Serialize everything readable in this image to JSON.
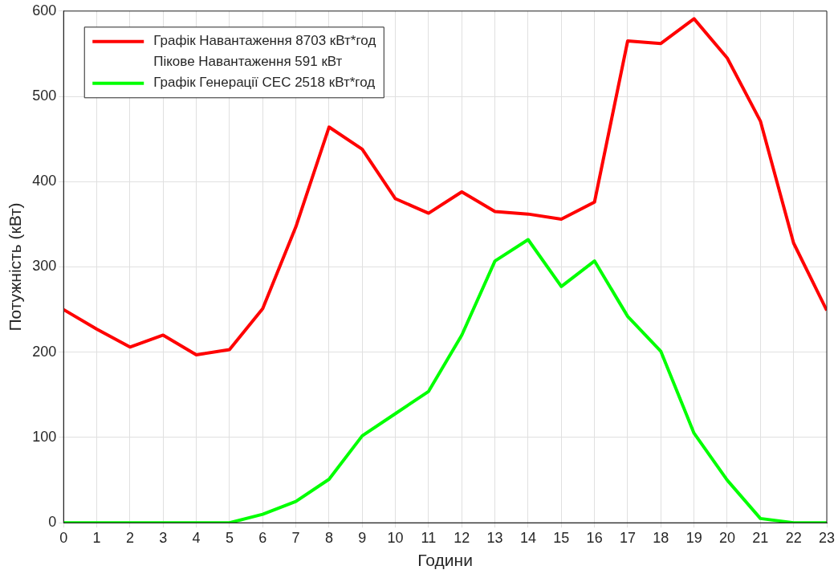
{
  "chart_data": {
    "type": "line",
    "xlabel": "Години",
    "ylabel": "Потужність (кВт)",
    "x": [
      0,
      1,
      2,
      3,
      4,
      5,
      6,
      7,
      8,
      9,
      10,
      11,
      12,
      13,
      14,
      15,
      16,
      17,
      18,
      19,
      20,
      21,
      22,
      23
    ],
    "series": [
      {
        "name": "Графік Навантаження 8703 кВт*год",
        "color": "#ff0000",
        "values": [
          250,
          227,
          206,
          220,
          197,
          203,
          251,
          347,
          464,
          438,
          380,
          363,
          388,
          365,
          362,
          356,
          376,
          565,
          562,
          591,
          545,
          471,
          328,
          249
        ]
      },
      {
        "name": "Графік Генерації СЕС 2518 кВт*год",
        "color": "#00ff00",
        "values": [
          0,
          0,
          0,
          0,
          0,
          0,
          10,
          25,
          51,
          102,
          128,
          154,
          220,
          307,
          332,
          277,
          307,
          242,
          201,
          105,
          50,
          5,
          0,
          0
        ]
      }
    ],
    "annotations": [
      "Пікове Навантаження 591 кВт"
    ],
    "xlim": [
      0,
      23
    ],
    "xticks": [
      0,
      1,
      2,
      3,
      4,
      5,
      6,
      7,
      8,
      9,
      10,
      11,
      12,
      13,
      14,
      15,
      16,
      17,
      18,
      19,
      20,
      21,
      22,
      23
    ],
    "ylim": [
      0,
      600
    ],
    "yticks": [
      0,
      100,
      200,
      300,
      400,
      500,
      600
    ],
    "grid": true,
    "legend": "top left",
    "marker": "none",
    "line_style": "solid"
  }
}
